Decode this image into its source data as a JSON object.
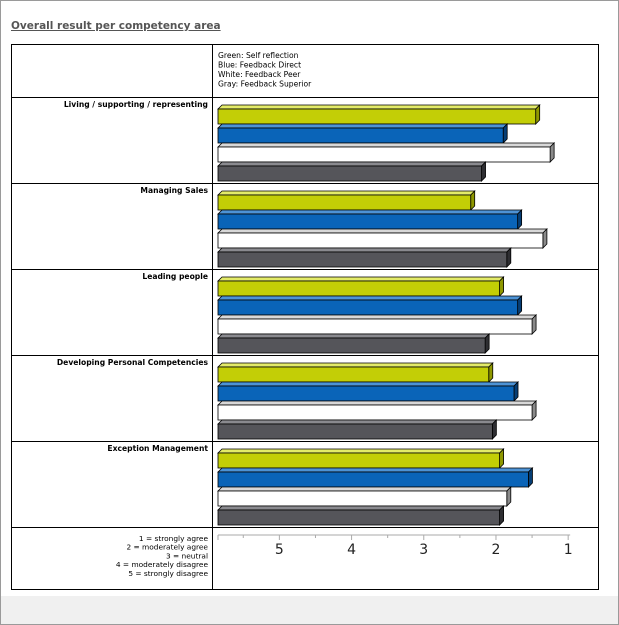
{
  "page": {
    "title": "Overall result per competency area"
  },
  "legend": [
    "Green: Self reflection",
    "Blue: Feedback Direct",
    "White: Feedback Peer",
    "Gray: Feedback Superior"
  ],
  "scale_legend": [
    "1 = strongly agree",
    "2 = moderately agree",
    "3 = neutral",
    "4 = moderately disagree",
    "5 = strongly disagree"
  ],
  "colors": {
    "self": "#c3ce06",
    "direct": "#0a64b8",
    "peer": "#ffffff",
    "superior": "#55555a"
  },
  "chart_data": {
    "type": "bar",
    "orientation": "horizontal",
    "categories": [
      "Living / supporting / representing",
      "Managing Sales",
      "Leading people",
      "Developing Personal Competencies",
      "Exception Management"
    ],
    "series": [
      {
        "name": "Self reflection",
        "color": "#c3ce06",
        "values": [
          1.45,
          2.35,
          1.95,
          2.1,
          1.95
        ]
      },
      {
        "name": "Feedback Direct",
        "color": "#0a64b8",
        "values": [
          1.9,
          1.7,
          1.7,
          1.75,
          1.55
        ]
      },
      {
        "name": "Feedback Peer",
        "color": "#ffffff",
        "values": [
          1.25,
          1.35,
          1.5,
          1.5,
          1.85
        ]
      },
      {
        "name": "Feedback Superior",
        "color": "#55555a",
        "values": [
          2.2,
          1.85,
          2.15,
          2.05,
          1.95
        ]
      }
    ],
    "x_ticks": [
      "5",
      "4",
      "3",
      "2",
      "1"
    ],
    "x_range": [
      5.85,
      1
    ],
    "x_reversed": true,
    "grid": false
  }
}
